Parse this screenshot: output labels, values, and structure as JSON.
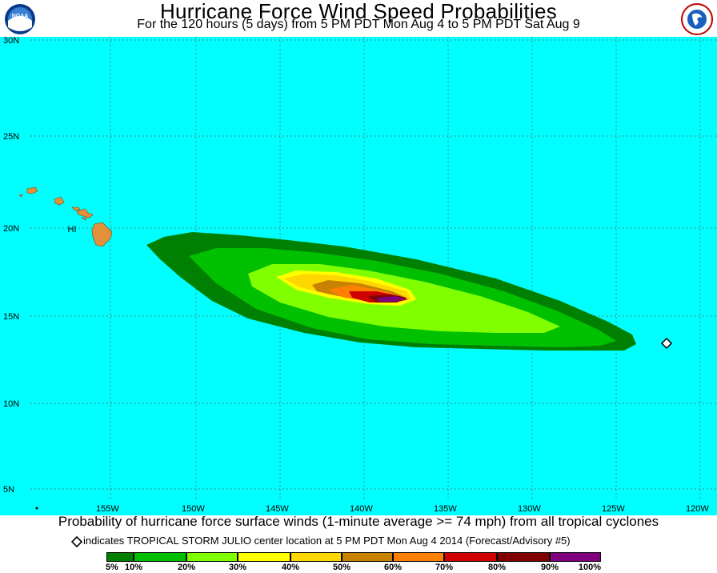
{
  "header": {
    "title": "Hurricane Force Wind Speed Probabilities",
    "subtitle": "For the 120 hours (5 days) from 5 PM PDT Mon Aug 4 to 5 PM PDT Sat Aug 9",
    "left_logo": "noaa-logo",
    "left_logo_text": "NOAA",
    "right_logo": "nws-logo"
  },
  "map": {
    "ocean_color": "#00ffff",
    "land_color": "#e0913a",
    "land_label": "HI",
    "lat_labels": [
      "30N",
      "25N",
      "20N",
      "15N",
      "10N",
      "5N"
    ],
    "lon_labels": [
      "155W",
      "150W",
      "145W",
      "140W",
      "135W",
      "130W",
      "125W",
      "120W"
    ]
  },
  "footer": {
    "caption": "Probability of hurricane force surface winds (1-minute average >= 74 mph) from all tropical cyclones",
    "storm_note": "indicates TROPICAL STORM JULIO center location at 5 PM PDT Mon Aug 4 2014 (Forecast/Advisory #5)"
  },
  "legend": {
    "labels": [
      "5%",
      "10%",
      "20%",
      "30%",
      "40%",
      "50%",
      "60%",
      "70%",
      "80%",
      "90%",
      "100%"
    ],
    "colors": [
      "#008000",
      "#00c000",
      "#80ff00",
      "#ffff00",
      "#ffd700",
      "#c88200",
      "#ff8000",
      "#d00000",
      "#800000",
      "#800080"
    ]
  }
}
